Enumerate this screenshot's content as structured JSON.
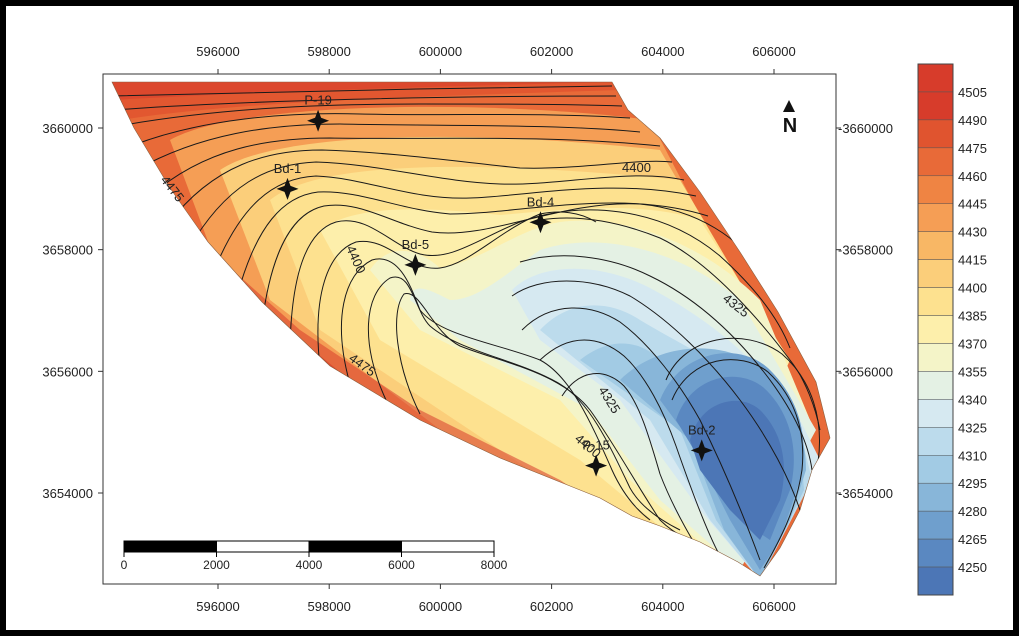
{
  "map": {
    "top_x_ticks": [
      "596000",
      "598000",
      "600000",
      "602000",
      "604000",
      "606000"
    ],
    "bottom_x_ticks": [
      "596000",
      "598000",
      "600000",
      "602000",
      "604000",
      "606000"
    ],
    "left_y_ticks": [
      "3660000",
      "3658000",
      "3656000",
      "3654000"
    ],
    "right_y_ticks": [
      "-3660000",
      "-3658000",
      "-3656000",
      "-3654000"
    ],
    "north_label": "N",
    "wells": [
      {
        "name": "P-19",
        "x": 597800,
        "y": 3660120
      },
      {
        "name": "Bd-1",
        "x": 597250,
        "y": 3659000
      },
      {
        "name": "Bd-4",
        "x": 601800,
        "y": 3658450
      },
      {
        "name": "Bd-5",
        "x": 599550,
        "y": 3657750
      },
      {
        "name": "P-15",
        "x": 602800,
        "y": 3654450
      },
      {
        "name": "Bd-2",
        "x": 604700,
        "y": 3654700
      }
    ],
    "contour_labels": [
      {
        "text": "4475",
        "where": "upper-left edge"
      },
      {
        "text": "4400",
        "where": "upper-right"
      },
      {
        "text": "4400",
        "where": "center-left"
      },
      {
        "text": "4325",
        "where": "right"
      },
      {
        "text": "4475",
        "where": "lower-left edge"
      },
      {
        "text": "4325",
        "where": "lower-center"
      },
      {
        "text": "4400",
        "where": "near P-15"
      }
    ],
    "scale_bar": {
      "labels": [
        "0",
        "2000",
        "4000",
        "6000",
        "8000"
      ]
    }
  },
  "legend": {
    "levels": [
      "4505",
      "4490",
      "4475",
      "4460",
      "4445",
      "4430",
      "4415",
      "4400",
      "4385",
      "4370",
      "4355",
      "4340",
      "4325",
      "4310",
      "4295",
      "4280",
      "4265",
      "4250"
    ],
    "colors": [
      "#d73c2b",
      "#e0542f",
      "#e86a38",
      "#ef8443",
      "#f59e55",
      "#f8b765",
      "#fbce7a",
      "#fde18f",
      "#fdefab",
      "#f4f4c8",
      "#e4f1e4",
      "#d6e9f1",
      "#bcdbec",
      "#a2cbe4",
      "#88b6d9",
      "#6f9fcd",
      "#5a88c1",
      "#4c76b6"
    ],
    "top_color": "#d73c2b"
  }
}
